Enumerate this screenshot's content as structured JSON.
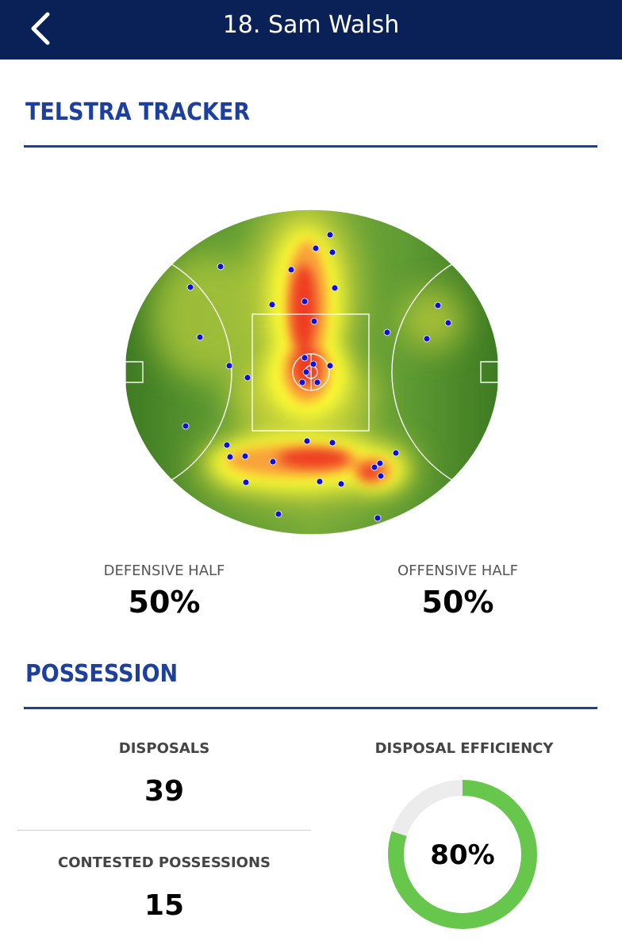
{
  "header": {
    "title": "18. Sam Walsh",
    "back_icon": "chevron-left-icon"
  },
  "tracker": {
    "title": "TELSTRA TRACKER",
    "defensive_label": "DEFENSIVE HALF",
    "defensive_value": "50%",
    "offensive_label": "OFFENSIVE HALF",
    "offensive_value": "50%"
  },
  "possession": {
    "title": "POSSESSION",
    "disposals_label": "DISPOSALS",
    "disposals_value": "39",
    "contested_label": "CONTESTED POSSESSIONS",
    "contested_value": "15",
    "efficiency_label": "DISPOSAL EFFICIENCY",
    "efficiency_value": "80%",
    "efficiency_fraction": 0.8
  },
  "colors": {
    "header_bg": "#0a2158",
    "accent_blue": "#1d3f9e",
    "donut_green": "#67c64c",
    "donut_track": "#ececec",
    "dot_blue": "#1010d8"
  }
}
